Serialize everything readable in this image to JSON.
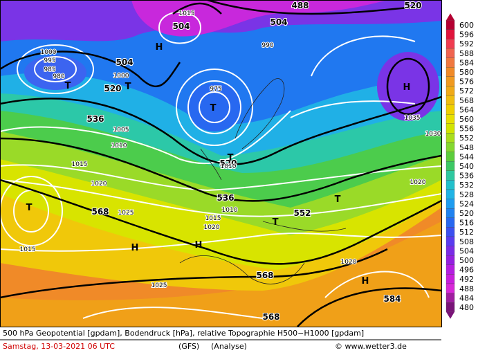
{
  "map": {
    "labels": [
      "504",
      "504",
      "504",
      "488",
      "520",
      "520",
      "536",
      "520",
      "536",
      "552",
      "568",
      "568",
      "568",
      "584",
      "H",
      "H",
      "H",
      "H",
      "H",
      "T",
      "T",
      "T",
      "T",
      "T",
      "T",
      "T",
      "1015",
      "1000",
      "995",
      "985",
      "975",
      "980",
      "1000",
      "1005",
      "1010",
      "1015",
      "1020",
      "1025",
      "1010",
      "1015",
      "1020",
      "1015",
      "1020",
      "1025",
      "1020",
      "1035",
      "1030",
      "1020",
      "1010",
      "990"
    ]
  },
  "legend": {
    "values": [
      600,
      596,
      592,
      588,
      584,
      580,
      576,
      572,
      568,
      564,
      560,
      556,
      552,
      548,
      544,
      540,
      536,
      532,
      528,
      524,
      520,
      516,
      512,
      508,
      504,
      500,
      496,
      492,
      488,
      484,
      480
    ],
    "colors": [
      "#b40032",
      "#e0143c",
      "#f03c50",
      "#f06450",
      "#f07840",
      "#f08a28",
      "#f09a20",
      "#f0aa18",
      "#f0be10",
      "#f0d000",
      "#e8e000",
      "#d2e400",
      "#aade1c",
      "#84d830",
      "#5ccd3c",
      "#3cc864",
      "#2ec8a0",
      "#22c0cc",
      "#20b4e6",
      "#1e9cf0",
      "#2082f0",
      "#2868f0",
      "#3c50f0",
      "#5a3cf0",
      "#7a2ce6",
      "#9420e0",
      "#b41ee0",
      "#c81edc",
      "#d828d8",
      "#a01ea0",
      "#7a1478"
    ]
  },
  "footer": {
    "description": "500 hPa Geopotential [gpdam], Bodendruck [hPa], relative Topographie H500−H1000 [gpdam]",
    "date": "Samstag, 13-03-2021  06 UTC",
    "model": "(GFS)",
    "analysis": "(Analyse)",
    "credit": "© www.wetter3.de"
  }
}
